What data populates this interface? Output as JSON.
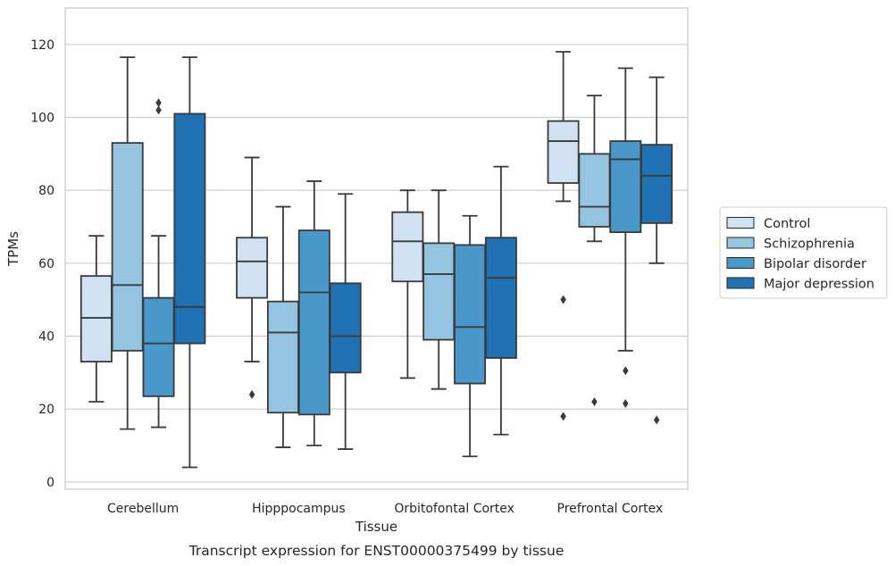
{
  "caption": "Transcript expression for ENST00000375499 by tissue",
  "chart_data": {
    "type": "box",
    "title": "",
    "xlabel": "Tissue",
    "ylabel": "TPMs",
    "ylim": [
      -2,
      130
    ],
    "yticks": [
      0,
      20,
      40,
      60,
      80,
      100,
      120
    ],
    "grid": "horizontal",
    "legend_position": "right",
    "categories": [
      "Cerebellum",
      "Hipppocampus",
      "Orbitofontal Cortex",
      "Prefrontal Cortex"
    ],
    "series": [
      {
        "name": "Control",
        "color": "#d0e1f2",
        "boxes": [
          {
            "whisker_low": 22,
            "q1": 33,
            "median": 45,
            "q3": 56.5,
            "whisker_high": 67.5,
            "outliers": []
          },
          {
            "whisker_low": 33,
            "q1": 50.5,
            "median": 60.5,
            "q3": 67,
            "whisker_high": 89,
            "outliers": [
              24
            ]
          },
          {
            "whisker_low": 28.5,
            "q1": 55,
            "median": 66,
            "q3": 74,
            "whisker_high": 80,
            "outliers": []
          },
          {
            "whisker_low": 77,
            "q1": 82,
            "median": 93.5,
            "q3": 99,
            "whisker_high": 118,
            "outliers": [
              50,
              18
            ]
          }
        ]
      },
      {
        "name": "Schizophrenia",
        "color": "#94c4df",
        "boxes": [
          {
            "whisker_low": 14.5,
            "q1": 36,
            "median": 54,
            "q3": 93,
            "whisker_high": 116.5,
            "outliers": []
          },
          {
            "whisker_low": 9.5,
            "q1": 19,
            "median": 41,
            "q3": 49.5,
            "whisker_high": 75.5,
            "outliers": []
          },
          {
            "whisker_low": 25.5,
            "q1": 39,
            "median": 57,
            "q3": 65.5,
            "whisker_high": 80,
            "outliers": []
          },
          {
            "whisker_low": 66,
            "q1": 70,
            "median": 75.5,
            "q3": 90,
            "whisker_high": 106,
            "outliers": [
              22
            ]
          }
        ]
      },
      {
        "name": "Bipolar disorder",
        "color": "#4a98c9",
        "boxes": [
          {
            "whisker_low": 15,
            "q1": 23.5,
            "median": 38,
            "q3": 50.5,
            "whisker_high": 67.5,
            "outliers": [
              102,
              104
            ]
          },
          {
            "whisker_low": 10,
            "q1": 18.5,
            "median": 52,
            "q3": 69,
            "whisker_high": 82.5,
            "outliers": []
          },
          {
            "whisker_low": 7,
            "q1": 27,
            "median": 42.5,
            "q3": 65,
            "whisker_high": 73,
            "outliers": []
          },
          {
            "whisker_low": 36,
            "q1": 68.5,
            "median": 88.5,
            "q3": 93.5,
            "whisker_high": 113.5,
            "outliers": [
              30.5,
              21.5
            ]
          }
        ]
      },
      {
        "name": "Major depression",
        "color": "#2171b5",
        "boxes": [
          {
            "whisker_low": 4,
            "q1": 38,
            "median": 48,
            "q3": 101,
            "whisker_high": 116.5,
            "outliers": []
          },
          {
            "whisker_low": 9,
            "q1": 30,
            "median": 40,
            "q3": 54.5,
            "whisker_high": 79,
            "outliers": []
          },
          {
            "whisker_low": 13,
            "q1": 34,
            "median": 56,
            "q3": 67,
            "whisker_high": 86.5,
            "outliers": []
          },
          {
            "whisker_low": 60,
            "q1": 71,
            "median": 84,
            "q3": 92.5,
            "whisker_high": 111,
            "outliers": [
              17
            ]
          }
        ]
      }
    ]
  }
}
